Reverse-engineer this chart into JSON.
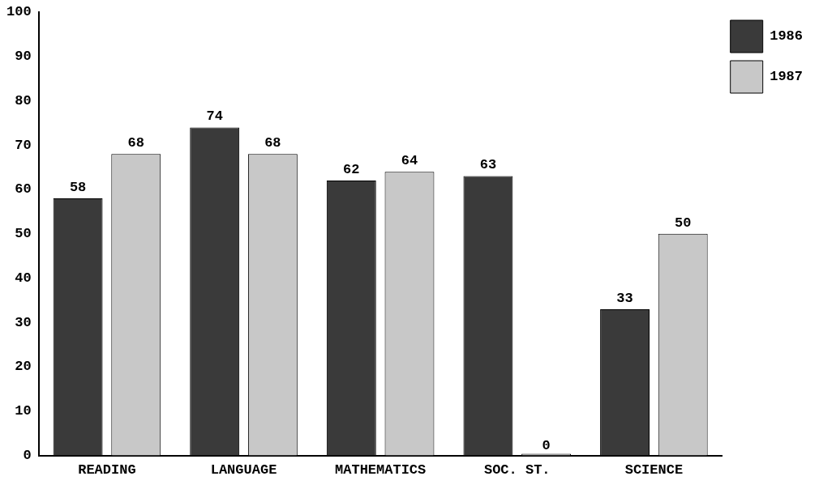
{
  "chart_data": {
    "type": "bar",
    "categories": [
      "READING",
      "LANGUAGE",
      "MATHEMATICS",
      "SOC. ST.",
      "SCIENCE"
    ],
    "series": [
      {
        "name": "1986",
        "color": "#3a3a3a",
        "values": [
          58,
          74,
          62,
          63,
          33
        ]
      },
      {
        "name": "1987",
        "color": "#c8c8c8",
        "values": [
          68,
          68,
          64,
          0,
          50
        ]
      }
    ],
    "ylim": [
      0,
      100
    ],
    "yticks": [
      0,
      10,
      20,
      30,
      40,
      50,
      60,
      70,
      80,
      90,
      100
    ],
    "grid": false,
    "legend": "top right",
    "data_labels": true
  }
}
